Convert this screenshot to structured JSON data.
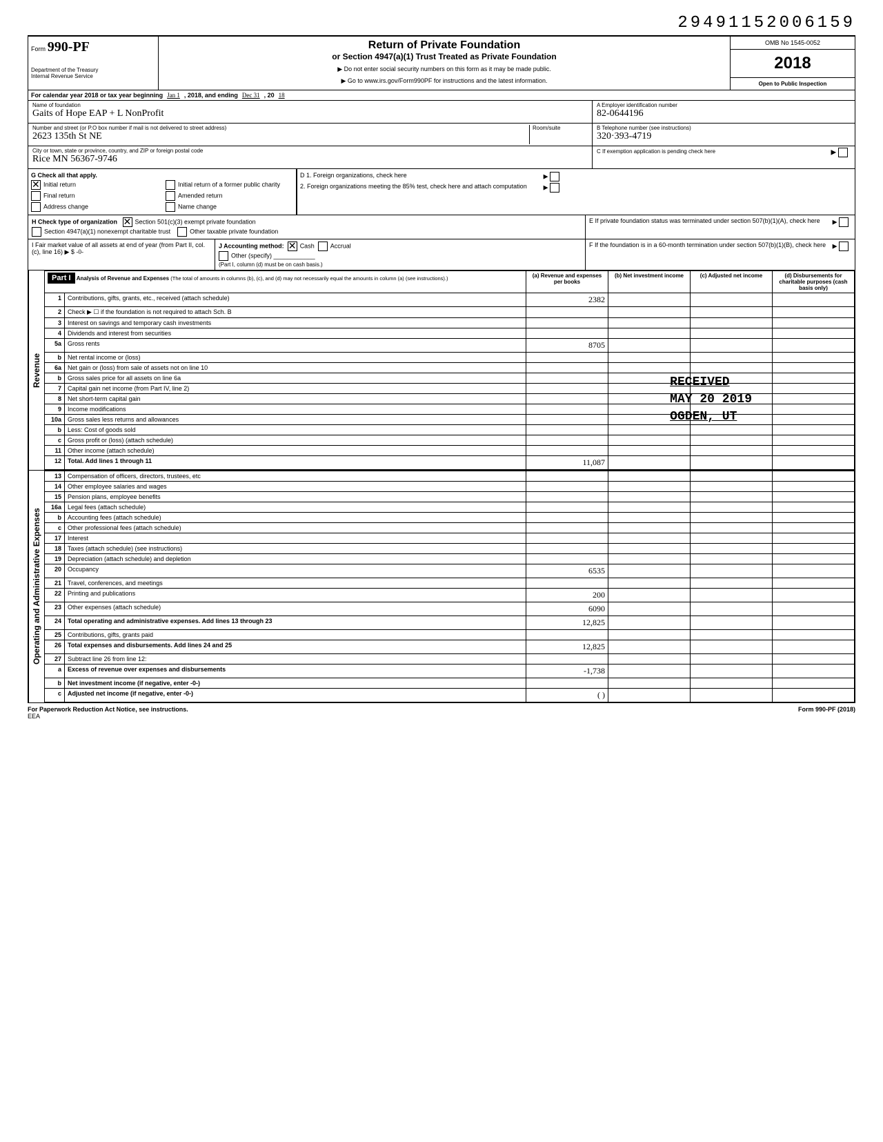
{
  "doc_id": "29491152006159",
  "form": {
    "number": "990-PF",
    "title": "Return of Private Foundation",
    "subtitle": "or Section 4947(a)(1) Trust Treated as Private Foundation",
    "instr1": "▶ Do not enter social security numbers on this form as it may be made public.",
    "instr2": "▶ Go to www.irs.gov/Form990PF for instructions and the latest information.",
    "dept1": "Department of the Treasury",
    "dept2": "Internal Revenue Service",
    "omb": "OMB No 1545-0052",
    "year": "2018",
    "open": "Open to Public Inspection"
  },
  "cal": {
    "prefix": "For calendar year 2018 or tax year beginning",
    "begin": "Jan 1",
    "mid": ", 2018, and ending",
    "end": "Dec 31",
    "suffix": ", 20",
    "yr": "18"
  },
  "foundation": {
    "name_lbl": "Name of foundation",
    "name": "Gaits of Hope EAP + L NonProfit",
    "addr_lbl": "Number and street (or P.O box number if mail is not delivered to street address)",
    "addr": "2623  135th St NE",
    "city_lbl": "City or town, state or province, country, and ZIP or foreign postal code",
    "city": "Rice   MN   56367-9746",
    "room_lbl": "Room/suite",
    "ein_lbl": "A Employer identification number",
    "ein": "82-0644196",
    "tel_lbl": "B Telephone number (see instructions)",
    "tel": "320·393-4719",
    "c_lbl": "C  If exemption application is pending check here"
  },
  "g": {
    "lbl": "G Check all that apply.",
    "o1": "Initial return",
    "o2": "Initial return of a former public charity",
    "o3": "Final return",
    "o4": "Amended return",
    "o5": "Address change",
    "o6": "Name change"
  },
  "h": {
    "lbl": "H Check type of organization",
    "o1": "Section 501(c)(3) exempt private foundation",
    "o2": "Section 4947(a)(1) nonexempt charitable trust",
    "o3": "Other taxable private foundation"
  },
  "i": {
    "lbl": "I  Fair market value of all assets at end of year (from Part II, col. (c), line 16) ▶ $",
    "val": "-0-"
  },
  "j": {
    "lbl": "J  Accounting method:",
    "o1": "Cash",
    "o2": "Accrual",
    "o3": "Other (specify)",
    "note": "(Part I, column (d) must be on cash basis.)"
  },
  "d": {
    "d1": "D  1. Foreign organizations, check here",
    "d2": "2. Foreign organizations meeting the 85% test, check here and attach computation"
  },
  "e": {
    "e1": "E  If private foundation status was terminated under section 507(b)(1)(A), check here"
  },
  "f": {
    "f1": "F  If the foundation is in a 60-month termination under section 507(b)(1)(B), check here"
  },
  "part1": {
    "label": "Part I",
    "title": "Analysis of Revenue and Expenses",
    "sub": "(The total of amounts in columns (b), (c), and (d) may not necessarily equal the amounts in column (a) (see instructions).)",
    "cols": {
      "a": "(a) Revenue and expenses per books",
      "b": "(b) Net investment income",
      "c": "(c) Adjusted net income",
      "d": "(d) Disbursements for charitable purposes (cash basis only)"
    }
  },
  "side": {
    "rev": "Revenue",
    "exp": "Operating and Administrative Expenses"
  },
  "rows": [
    {
      "n": "1",
      "d": "Contributions, gifts, grants, etc., received (attach schedule)",
      "a": "2382"
    },
    {
      "n": "2",
      "d": "Check ▶ ☐  if the foundation is not required to attach Sch. B"
    },
    {
      "n": "3",
      "d": "Interest on savings and temporary cash investments"
    },
    {
      "n": "4",
      "d": "Dividends and interest from securities"
    },
    {
      "n": "5a",
      "d": "Gross rents",
      "a": "8705"
    },
    {
      "n": "b",
      "d": "Net rental income or (loss)"
    },
    {
      "n": "6a",
      "d": "Net gain or (loss) from sale of assets not on line 10"
    },
    {
      "n": "b",
      "d": "Gross sales price for all assets on line 6a"
    },
    {
      "n": "7",
      "d": "Capital gain net income (from Part IV, line 2)"
    },
    {
      "n": "8",
      "d": "Net short-term capital gain"
    },
    {
      "n": "9",
      "d": "Income modifications"
    },
    {
      "n": "10a",
      "d": "Gross sales less returns and allowances"
    },
    {
      "n": "b",
      "d": "Less: Cost of goods sold"
    },
    {
      "n": "c",
      "d": "Gross profit or (loss) (attach schedule)"
    },
    {
      "n": "11",
      "d": "Other income (attach schedule)"
    },
    {
      "n": "12",
      "d": "Total. Add lines 1 through 11",
      "a": "11,087",
      "bold": true
    }
  ],
  "exp_rows": [
    {
      "n": "13",
      "d": "Compensation of officers, directors, trustees, etc"
    },
    {
      "n": "14",
      "d": "Other employee salaries and wages"
    },
    {
      "n": "15",
      "d": "Pension plans, employee benefits"
    },
    {
      "n": "16a",
      "d": "Legal fees (attach schedule)"
    },
    {
      "n": "b",
      "d": "Accounting fees (attach schedule)"
    },
    {
      "n": "c",
      "d": "Other professional fees (attach schedule)"
    },
    {
      "n": "17",
      "d": "Interest"
    },
    {
      "n": "18",
      "d": "Taxes (attach schedule) (see instructions)"
    },
    {
      "n": "19",
      "d": "Depreciation (attach schedule) and depletion"
    },
    {
      "n": "20",
      "d": "Occupancy",
      "a": "6535"
    },
    {
      "n": "21",
      "d": "Travel, conferences, and meetings"
    },
    {
      "n": "22",
      "d": "Printing and publications",
      "a": "200"
    },
    {
      "n": "23",
      "d": "Other expenses (attach schedule)",
      "a": "6090"
    },
    {
      "n": "24",
      "d": "Total operating and administrative expenses. Add lines 13 through 23",
      "a": "12,825",
      "bold": true
    },
    {
      "n": "25",
      "d": "Contributions, gifts, grants paid"
    },
    {
      "n": "26",
      "d": "Total expenses and disbursements. Add lines 24 and 25",
      "a": "12,825",
      "bold": true
    },
    {
      "n": "27",
      "d": "Subtract line 26 from line 12:"
    },
    {
      "n": "a",
      "d": "Excess of revenue over expenses and disbursements",
      "a": "-1,738",
      "bold": true
    },
    {
      "n": "b",
      "d": "Net investment income (if negative, enter -0-)",
      "bold": true
    },
    {
      "n": "c",
      "d": "Adjusted net income (if negative, enter -0-)",
      "a": "( )",
      "bold": true
    }
  ],
  "stamp": {
    "l1": "RECEIVED",
    "l2": "MAY 20 2019",
    "l3": "OGDEN, UT"
  },
  "footer": {
    "left": "For Paperwork Reduction Act Notice, see instructions.",
    "right": "Form 990-PF (2018)",
    "eea": "EEA"
  }
}
